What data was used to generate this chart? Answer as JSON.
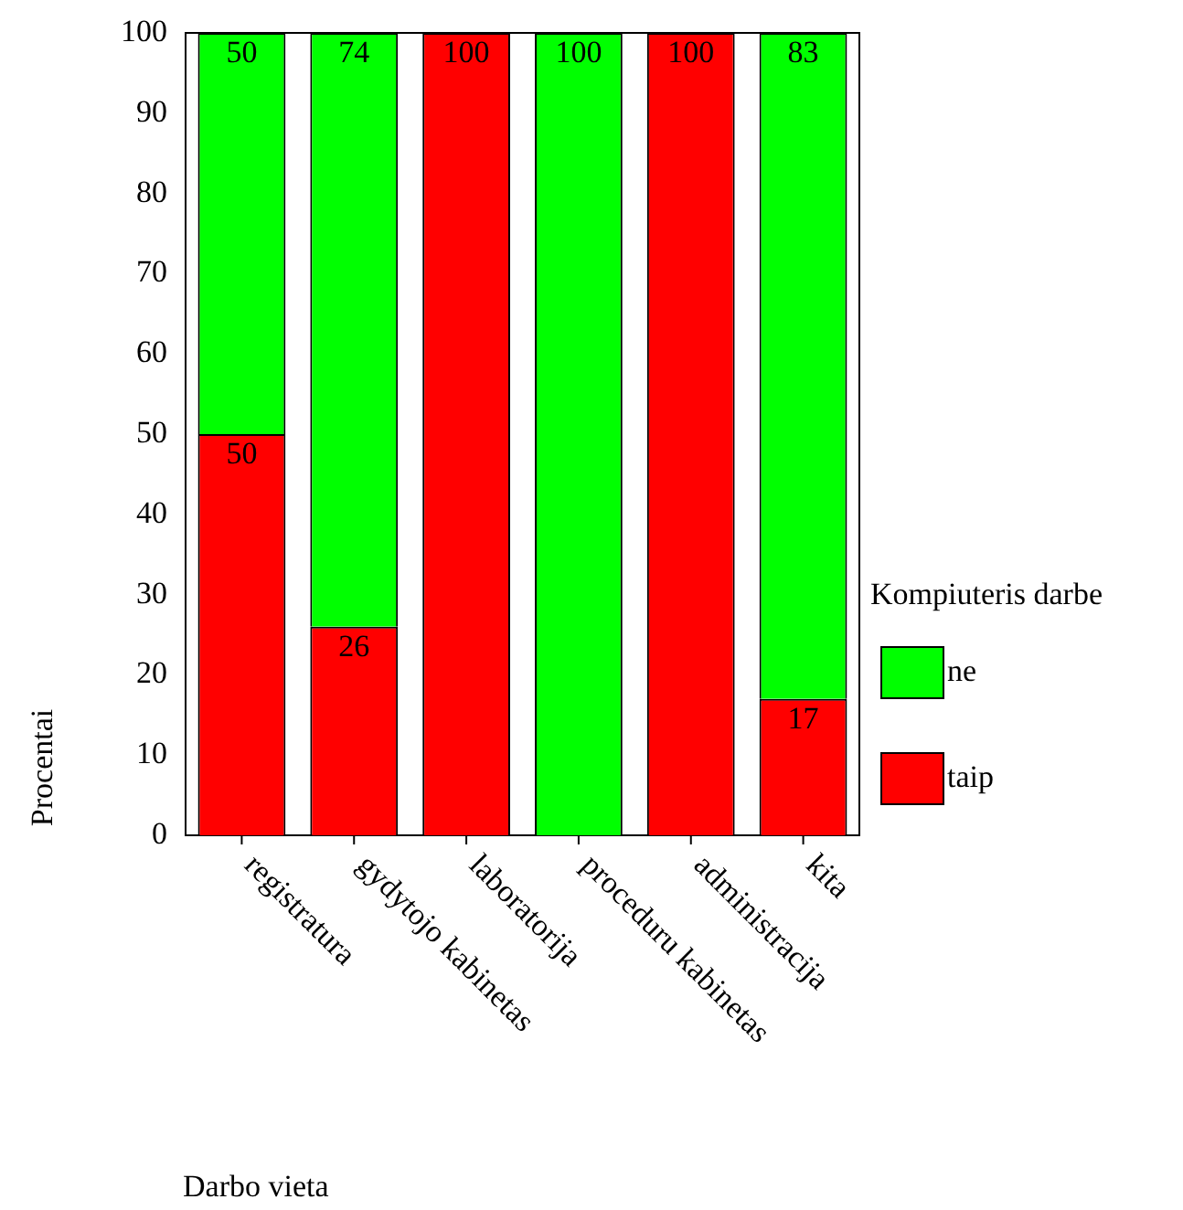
{
  "chart_data": {
    "type": "bar",
    "stacked": true,
    "xlabel": "Darbo vieta",
    "ylabel": "Procentai",
    "legend_title": "Kompiuteris darbe",
    "legend": "right",
    "categories": [
      "registratura",
      "gydytojo kabinetas",
      "laboratorija",
      "proceduru kabinetas",
      "administracija",
      "kita"
    ],
    "ylim": [
      0,
      100
    ],
    "yticks": [
      0,
      10,
      20,
      30,
      40,
      50,
      60,
      70,
      80,
      90,
      100
    ],
    "grid": false,
    "series": [
      {
        "name": "taip",
        "color": "#ff0000",
        "values": [
          50,
          26,
          100,
          0,
          100,
          17
        ],
        "value_labels": [
          "50",
          "26",
          "100",
          null,
          "100",
          "17"
        ]
      },
      {
        "name": "ne",
        "color": "#00ff00",
        "values": [
          50,
          74,
          0,
          100,
          0,
          83
        ],
        "value_labels": [
          "50",
          "74",
          null,
          "100",
          null,
          "83"
        ]
      }
    ]
  }
}
